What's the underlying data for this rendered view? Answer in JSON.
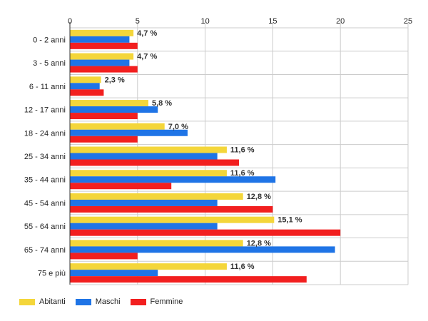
{
  "chart_data": {
    "type": "bar",
    "orientation": "horizontal",
    "categories": [
      "0 - 2 anni",
      "3 - 5 anni",
      "6 - 11 anni",
      "12 - 17 anni",
      "18 - 24 anni",
      "25 - 34 anni",
      "35 - 44 anni",
      "45 - 54 anni",
      "55 - 64 anni",
      "65 - 74 anni",
      "75 e più"
    ],
    "series": [
      {
        "name": "Abitanti",
        "color": "#f4d63a",
        "values": [
          4.7,
          4.7,
          2.3,
          5.8,
          7.0,
          11.6,
          11.6,
          12.8,
          15.1,
          12.8,
          11.6
        ]
      },
      {
        "name": "Maschi",
        "color": "#1f74e6",
        "values": [
          4.4,
          4.4,
          2.2,
          6.5,
          8.7,
          10.9,
          15.2,
          10.9,
          10.9,
          19.6,
          6.5
        ]
      },
      {
        "name": "Femmine",
        "color": "#f21f1f",
        "values": [
          5.0,
          5.0,
          2.5,
          5.0,
          5.0,
          12.5,
          7.5,
          15.0,
          20.0,
          5.0,
          17.5
        ]
      }
    ],
    "data_labels": [
      "4,7 %",
      "4,7 %",
      "2,3 %",
      "5,8 %",
      "7,0 %",
      "11,6 %",
      "11,6 %",
      "12,8 %",
      "15,1 %",
      "12,8 %",
      "11,6 %"
    ],
    "xticks": [
      0,
      5,
      10,
      15,
      20,
      25
    ],
    "xlim": [
      0,
      25
    ],
    "grid": true,
    "legend_position": "bottom-left",
    "title": "",
    "xlabel": "",
    "ylabel": ""
  }
}
